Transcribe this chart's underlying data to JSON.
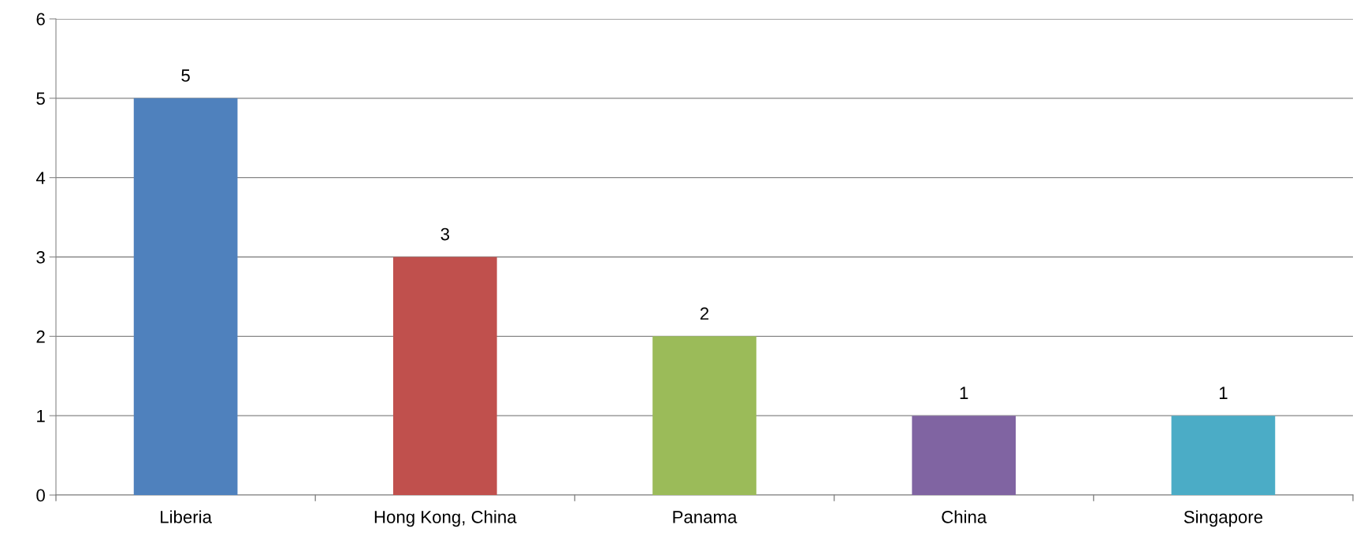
{
  "chart_data": {
    "type": "bar",
    "categories": [
      "Liberia",
      "Hong Kong, China",
      "Panama",
      "China",
      "Singapore"
    ],
    "values": [
      5,
      3,
      2,
      1,
      1
    ],
    "colors": [
      "#4f81bd",
      "#c0504d",
      "#9bbb59",
      "#8064a2",
      "#4bacc6"
    ],
    "ylim": [
      0,
      6
    ],
    "yticks": [
      0,
      1,
      2,
      3,
      4,
      5,
      6
    ],
    "grid": "y",
    "data_labels": true
  }
}
